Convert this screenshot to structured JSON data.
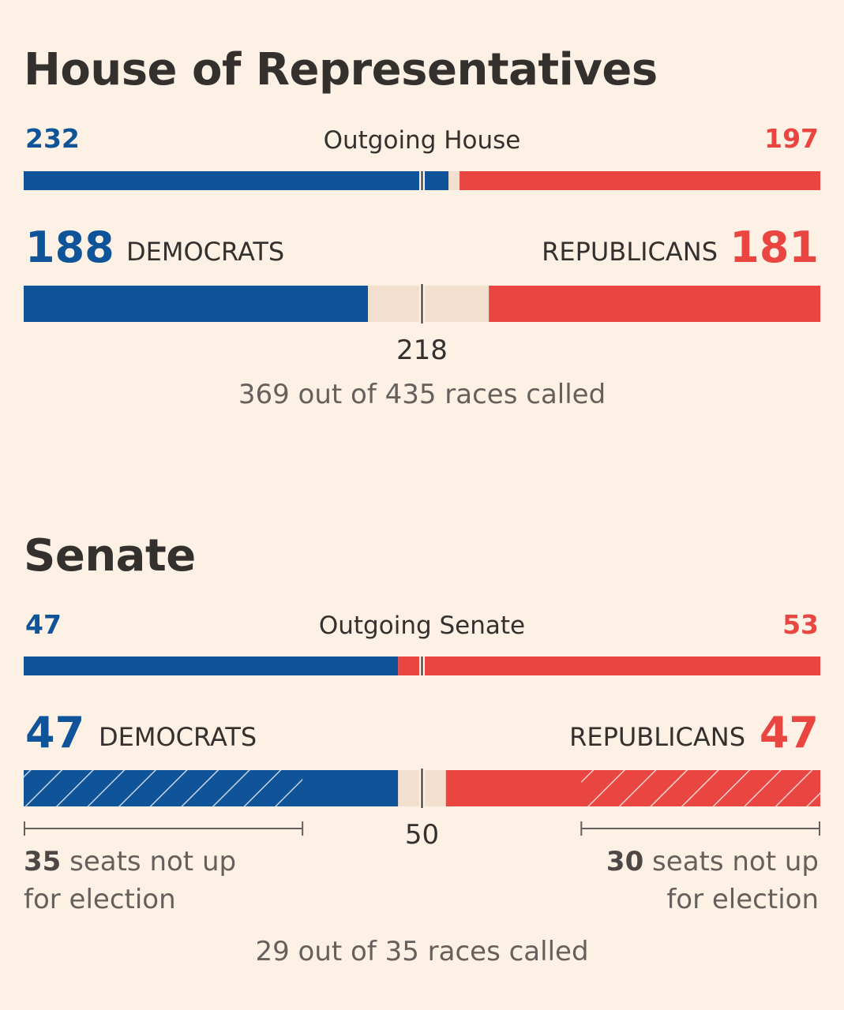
{
  "house": {
    "title": "House of Representatives",
    "outgoing_label": "Outgoing House",
    "outgoing_dem": "232",
    "outgoing_rep": "197",
    "dem_count": "188",
    "dem_label": "DEMOCRATS",
    "rep_label": "REPUBLICANS",
    "rep_count": "181",
    "majority": "218",
    "races_called": "369 out of 435 races called"
  },
  "senate": {
    "title": "Senate",
    "outgoing_label": "Outgoing Senate",
    "outgoing_dem": "47",
    "outgoing_rep": "53",
    "dem_count": "47",
    "dem_label": "DEMOCRATS",
    "rep_label": "REPUBLICANS",
    "rep_count": "47",
    "majority": "50",
    "dem_not_up_num": "35",
    "dem_not_up_line1": " seats not up",
    "dem_not_up_line2": "for election",
    "rep_not_up_num": "30",
    "rep_not_up_line1": " seats not up",
    "rep_not_up_line2": "for election",
    "races_called": "29 out of 35 races called"
  },
  "colors": {
    "dem": "#0f5499",
    "rep": "#e94541",
    "undecided": "#f2dfce",
    "background": "#fdf1e5"
  },
  "chart_data": [
    {
      "type": "bar",
      "title": "House of Representatives",
      "total_seats": 435,
      "majority": 218,
      "outgoing": {
        "Democrats": 232,
        "Republicans": 197
      },
      "current": {
        "Democrats": 188,
        "Republicans": 181,
        "Undecided": 66
      },
      "races_called": 369,
      "races_total": 435
    },
    {
      "type": "bar",
      "title": "Senate",
      "total_seats": 100,
      "majority": 50,
      "outgoing": {
        "Democrats": 47,
        "Republicans": 53
      },
      "current": {
        "Democrats": 47,
        "Republicans": 47,
        "Undecided": 6
      },
      "not_up_for_election": {
        "Democrats": 35,
        "Republicans": 30
      },
      "races_called": 29,
      "races_total": 35
    }
  ]
}
